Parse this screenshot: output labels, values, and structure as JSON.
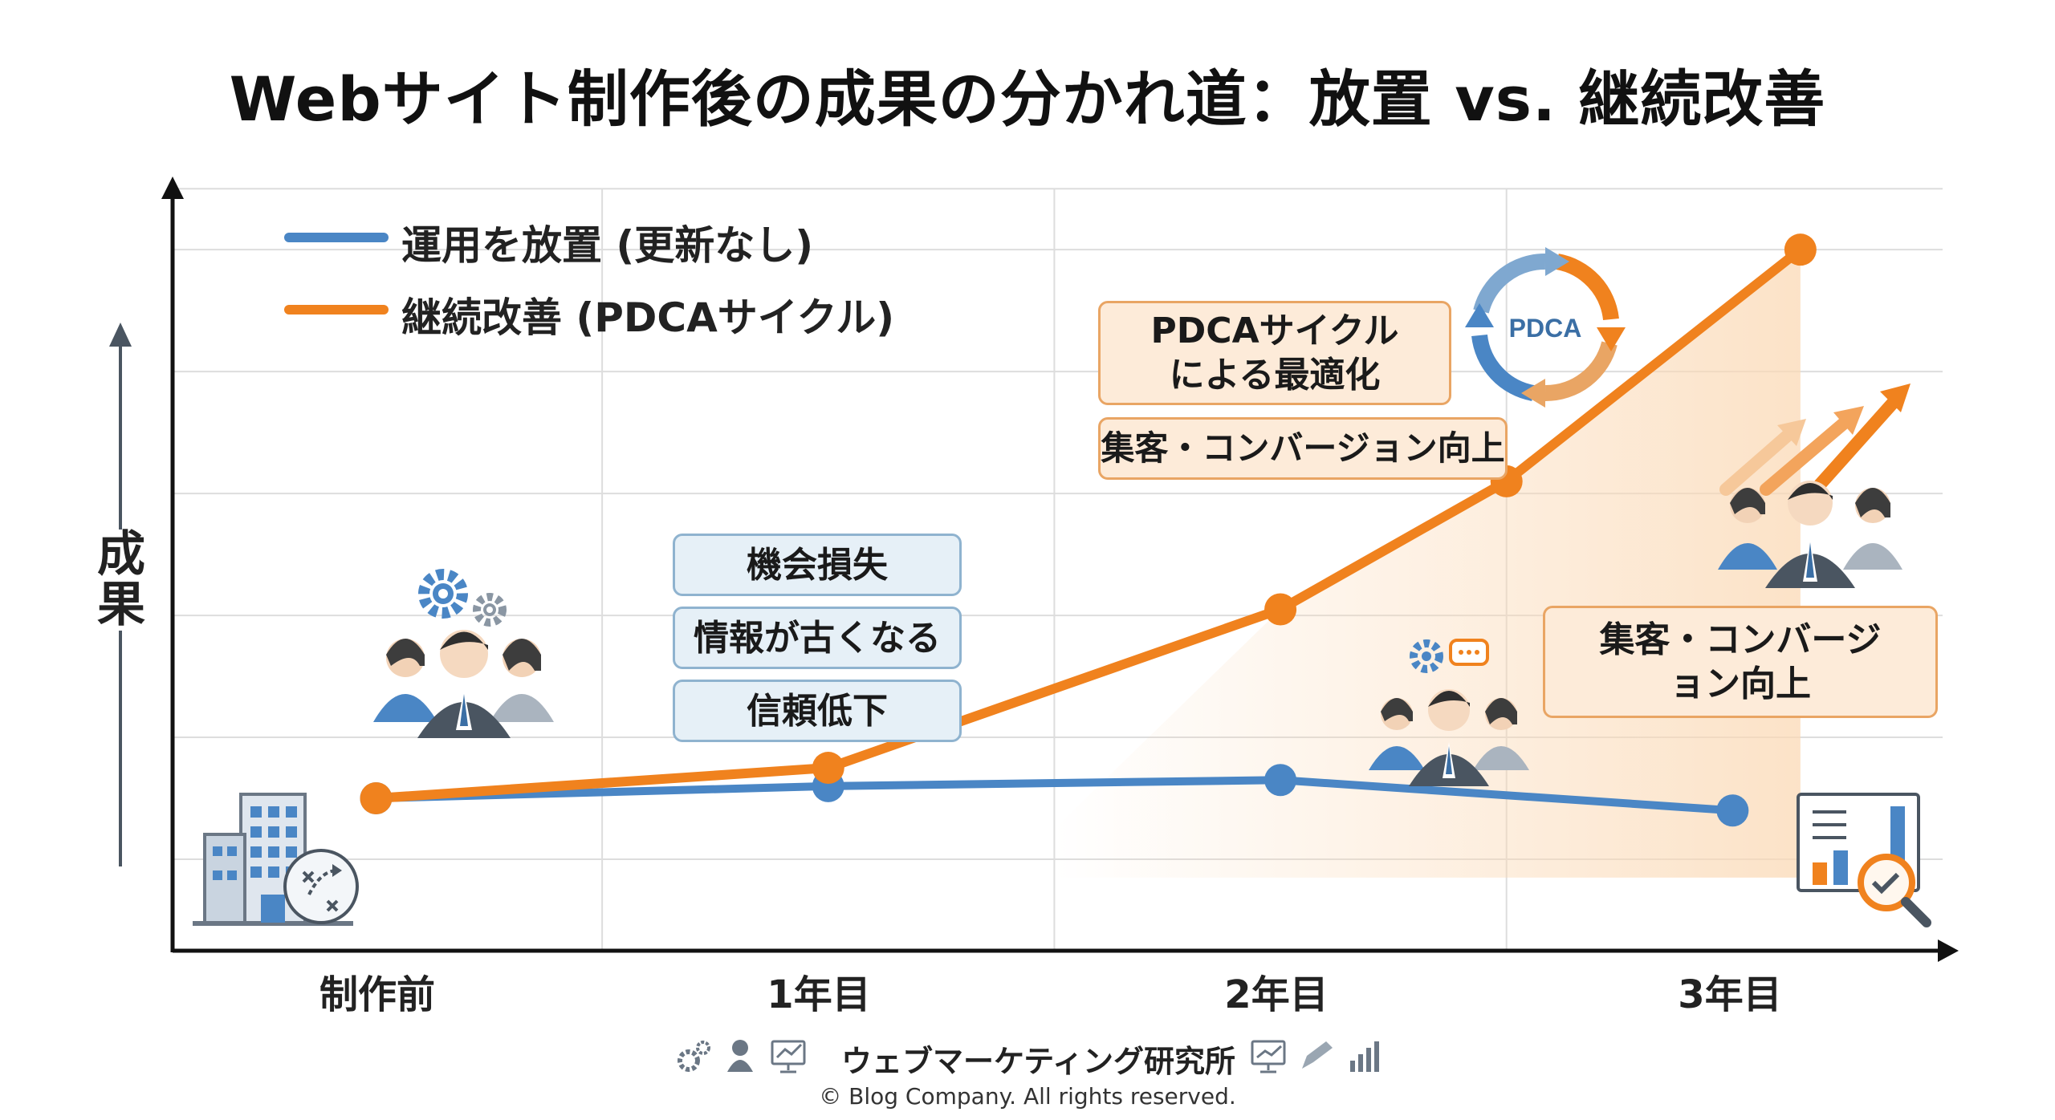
{
  "chart_data": {
    "type": "line",
    "title": "Webサイト制作後の成果の分かれ道：放置 vs. 継続改善",
    "ylabel": "成果",
    "xlabel": "",
    "categories": [
      "制作前",
      "1年目",
      "2年目",
      "3年目"
    ],
    "series": [
      {
        "name": "運用を放置 (更新なし)",
        "color": "#4a86c5",
        "x": [
          0,
          1,
          2,
          3
        ],
        "values": [
          1.0,
          1.2,
          1.3,
          0.8
        ]
      },
      {
        "name": "継続改善 (PDCAサイクル)",
        "color": "#f0821e",
        "x": [
          0,
          1,
          2,
          2.5,
          3.15
        ],
        "values": [
          1.0,
          1.5,
          4.1,
          6.2,
          10.0
        ]
      }
    ],
    "ylim": [
      -1.5,
      11.2
    ],
    "xlim": [
      -0.45,
      3.5
    ],
    "grid": true,
    "legend": "top-left",
    "annotations": {
      "neglect": [
        "機会損失",
        "情報が古くなる",
        "信頼低下"
      ],
      "pdca_optimization": "PDCAサイクルによる最適化",
      "conversion_up_1": "集客・コンバージョン向上",
      "conversion_up_2": "集客・コンバージョン向上",
      "pdca_cycle_label": "PDCA"
    }
  },
  "icons": [
    "gear-people-icon",
    "building-icon",
    "strategy-icon",
    "growth-arrows-icon",
    "analytics-report-icon",
    "magnifier-icon"
  ],
  "footer": {
    "organization": "ウェブマーケティング研究所",
    "copyright": "© Blog Company. All rights reserved."
  },
  "colors": {
    "neglect": "#4a86c5",
    "improve": "#f0821e",
    "axis": "#111111",
    "grid": "#dddddd"
  }
}
